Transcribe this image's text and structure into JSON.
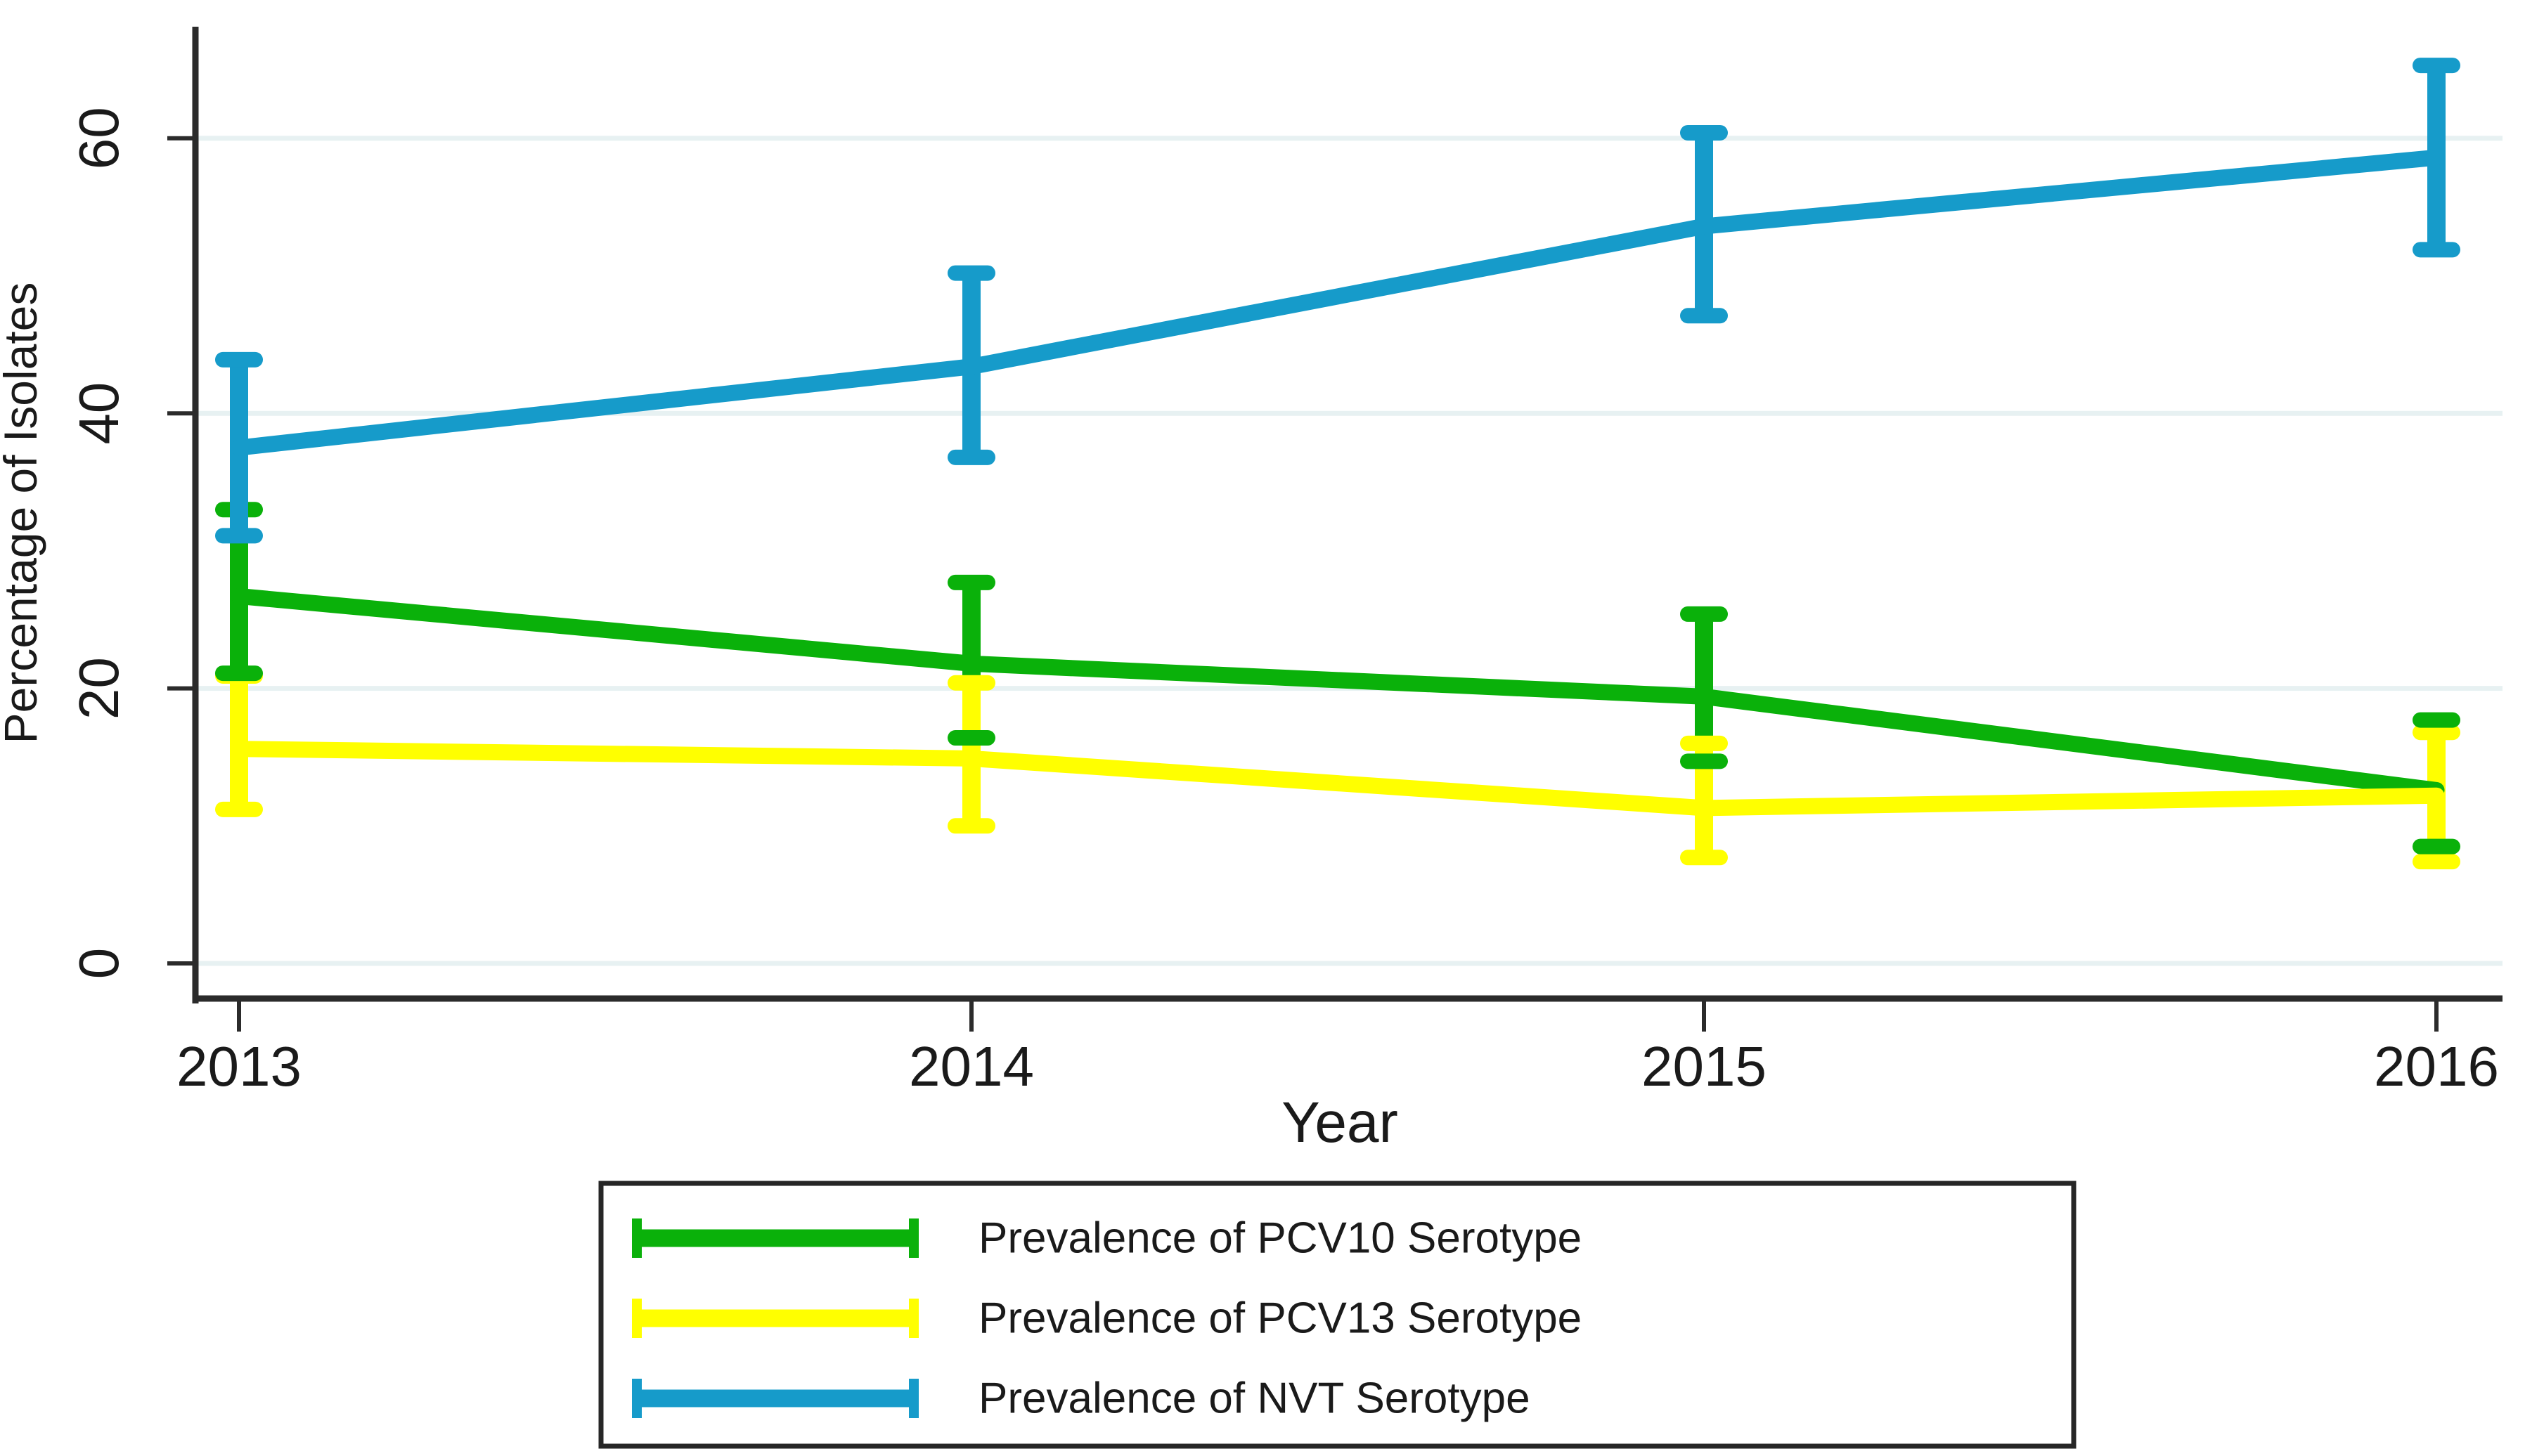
{
  "chart_data": {
    "type": "line",
    "title": "",
    "xlabel": "Year",
    "ylabel": "Percentage of Isolates",
    "x_categories": [
      "2013",
      "2014",
      "2015",
      "2016"
    ],
    "y_ticks": [
      0,
      20,
      40,
      60
    ],
    "ylim": [
      0,
      68
    ],
    "grid": true,
    "error_bars": true,
    "legend_position": "bottom-box",
    "series": [
      {
        "id": "pcv10",
        "name": "Prevalence of PCV10 Serotype",
        "color": "#0ab10a",
        "values": [
          26.7,
          21.8,
          19.4,
          12.6
        ],
        "ci_low": [
          21.1,
          16.4,
          14.7,
          8.5
        ],
        "ci_high": [
          33.0,
          27.7,
          25.4,
          17.7
        ]
      },
      {
        "id": "pcv13",
        "name": "Prevalence of PCV13 Serotype",
        "color": "#ffff00",
        "values": [
          15.6,
          14.9,
          11.3,
          12.2
        ],
        "ci_low": [
          11.2,
          10.0,
          7.7,
          7.4
        ],
        "ci_high": [
          20.9,
          20.4,
          16.0,
          16.8
        ]
      },
      {
        "id": "nvt",
        "name": "Prevalence of NVT Serotype",
        "color": "#169bca",
        "values": [
          37.5,
          43.4,
          53.6,
          58.6
        ],
        "ci_low": [
          31.1,
          36.8,
          47.1,
          51.9
        ],
        "ci_high": [
          43.9,
          50.2,
          60.4,
          65.3
        ]
      }
    ],
    "colors": {
      "grid": "#e7f1f2",
      "axis": "#2b2b2b",
      "text": "#1a1a1a",
      "background": "#ffffff",
      "legend_border": "#262626"
    }
  }
}
